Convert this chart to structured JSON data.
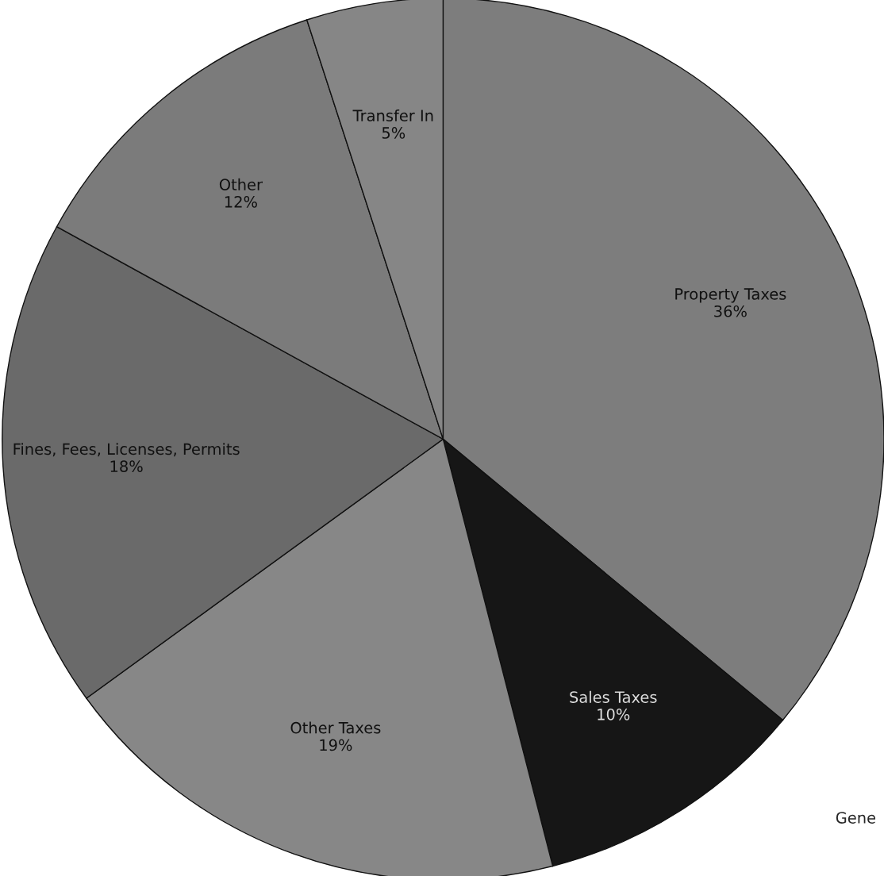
{
  "chart_data": {
    "type": "pie",
    "categories": [
      "Property Taxes",
      "Sales Taxes",
      "Other Taxes",
      "Fines, Fees, Licenses, Permits",
      "Other",
      "Transfer In"
    ],
    "values": [
      36,
      10,
      19,
      18,
      12,
      5
    ],
    "colors": [
      "#7d7d7d",
      "#161616",
      "#878787",
      "#6a6a6a",
      "#7b7b7b",
      "#868686"
    ],
    "value_labels": [
      "36%",
      "10%",
      "19%",
      "18%",
      "12%",
      "5%"
    ],
    "annotations": [
      "Gene"
    ]
  }
}
